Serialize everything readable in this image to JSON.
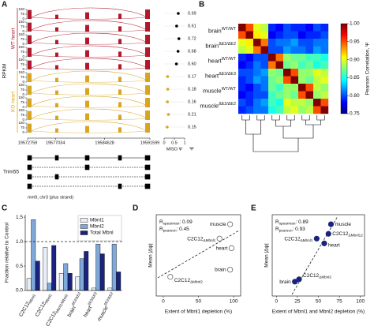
{
  "panel_labels": [
    "A",
    "B",
    "C",
    "D",
    "E"
  ],
  "panel_a": {
    "y_label": "RPKM",
    "groups": [
      {
        "name": "WT heart",
        "color": "#b2182b",
        "psi": [
          0.69,
          0.61,
          0.72,
          0.68,
          0.6
        ],
        "psi_labels": [
          "0.69",
          "0.61",
          "0.72",
          "0.68",
          "0.60"
        ]
      },
      {
        "name": "KO heart",
        "color": "#d9a520",
        "psi": [
          0.17,
          0.18,
          0.16,
          0.21,
          0.15
        ],
        "psi_labels": [
          "0.17",
          "0.18",
          "0.16",
          "0.21",
          "0.15"
        ]
      }
    ],
    "track_yticks": [
      0,
      75,
      150
    ],
    "xlim": [
      19572759,
      19591599
    ],
    "xticks": [
      19572759,
      19577034,
      19584628,
      19591599
    ],
    "psi_label": "MISO Ψ",
    "psi_header": "Ψ",
    "psi_xlim": [
      0,
      1
    ],
    "psi_xticks": [
      0,
      0.5,
      1
    ],
    "gene": "Trim55",
    "assembly": "mm9, chr3 (plus strand)"
  },
  "panel_b": {
    "colorbar_label": "Pearson Correlation, Ψ",
    "colormap": "jet",
    "samples": [
      {
        "name": "brain",
        "sup": "WT/WT"
      },
      {
        "name": "brain",
        "sup": "ΔE2/ΔE2"
      },
      {
        "name": "heart",
        "sup": "WT/WT"
      },
      {
        "name": "heart",
        "sup": "ΔE3/ΔE3"
      },
      {
        "name": "muscle",
        "sup": "WT/WT"
      },
      {
        "name": "muscle",
        "sup": "ΔE2/ΔE2"
      }
    ],
    "matrix": [
      [
        1.0,
        0.95,
        0.9,
        0.89,
        0.79,
        0.78,
        0.8,
        0.79,
        0.79,
        0.78,
        0.8,
        0.79
      ],
      [
        0.95,
        1.0,
        0.91,
        0.9,
        0.78,
        0.79,
        0.8,
        0.8,
        0.78,
        0.79,
        0.79,
        0.8
      ],
      [
        0.9,
        0.91,
        1.0,
        0.94,
        0.8,
        0.81,
        0.81,
        0.82,
        0.8,
        0.8,
        0.81,
        0.81
      ],
      [
        0.89,
        0.9,
        0.94,
        1.0,
        0.8,
        0.8,
        0.82,
        0.81,
        0.81,
        0.8,
        0.82,
        0.81
      ],
      [
        0.79,
        0.78,
        0.8,
        0.8,
        1.0,
        0.94,
        0.88,
        0.87,
        0.87,
        0.86,
        0.86,
        0.85
      ],
      [
        0.78,
        0.79,
        0.81,
        0.8,
        0.94,
        1.0,
        0.87,
        0.88,
        0.86,
        0.87,
        0.85,
        0.86
      ],
      [
        0.8,
        0.8,
        0.81,
        0.82,
        0.88,
        0.87,
        1.0,
        0.95,
        0.88,
        0.88,
        0.9,
        0.89
      ],
      [
        0.79,
        0.8,
        0.82,
        0.81,
        0.87,
        0.88,
        0.95,
        1.0,
        0.88,
        0.87,
        0.89,
        0.9
      ],
      [
        0.79,
        0.78,
        0.8,
        0.81,
        0.87,
        0.86,
        0.88,
        0.88,
        1.0,
        0.95,
        0.89,
        0.88
      ],
      [
        0.78,
        0.79,
        0.8,
        0.8,
        0.86,
        0.87,
        0.88,
        0.87,
        0.95,
        1.0,
        0.88,
        0.89
      ],
      [
        0.8,
        0.79,
        0.81,
        0.82,
        0.86,
        0.85,
        0.9,
        0.89,
        0.89,
        0.88,
        1.0,
        0.95
      ],
      [
        0.79,
        0.8,
        0.81,
        0.81,
        0.85,
        0.86,
        0.89,
        0.9,
        0.88,
        0.89,
        0.95,
        1.0
      ]
    ],
    "clim": [
      0.75,
      1.0
    ],
    "cticks": [
      0.75,
      {
        "value": 0.8,
        "label": "0.80"
      },
      0.85,
      {
        "value": 0.9,
        "label": "0.90"
      },
      0.95,
      {
        "value": 1.0,
        "label": "1.00"
      }
    ]
  },
  "chart_data": [
    {
      "type": "bar",
      "y_label": "Fraction relative to Control",
      "categories": [
        {
          "name": "C2C12",
          "sub": "Mbnl1"
        },
        {
          "name": "C2C12",
          "sub": "Mbnl2"
        },
        {
          "name": "C2C12",
          "sub": "Mbnl1/Mbnl2"
        },
        {
          "name": "brain",
          "sup": "ΔE2/ΔE2"
        },
        {
          "name": "heart",
          "sup": "ΔE3/ΔE3"
        },
        {
          "name": "muscle",
          "sup": "ΔE2/ΔE2"
        }
      ],
      "series": [
        {
          "name": "Mbnl1",
          "color": "#e8eef8",
          "values": [
            0.25,
            0.88,
            0.35,
            0.28,
            0.05,
            0.05
          ]
        },
        {
          "name": "Mbnl2",
          "color": "#7ea9da",
          "values": [
            1.45,
            0.15,
            0.55,
            0.65,
            0.95,
            0.95
          ]
        },
        {
          "name": "Total Mbnl",
          "color": "#1a237e",
          "values": [
            0.6,
            0.92,
            0.35,
            0.8,
            0.75,
            0.38
          ]
        }
      ],
      "ylim": [
        0,
        1.55
      ],
      "yticks": [
        {
          "value": 0,
          "label": "0.0"
        },
        0.5,
        {
          "value": 1,
          "label": "1.0"
        },
        1.5
      ],
      "reference_line": 1,
      "legend": "upper right"
    },
    {
      "type": "scatter",
      "x_label": "Extent of Mbnl1 depletion (%)",
      "y_label": "Mean |Δψ|",
      "annotations": [
        {
          "symbol": "R",
          "sub": "spearman",
          "text": ": 0.09"
        },
        {
          "symbol": "R",
          "sub": "pearson",
          "text": ": 0.45"
        }
      ],
      "series": [
        {
          "color": "#666666",
          "filled": false,
          "labels": [
            {
              "name": "C2C12",
              "sub": "ΔMbnl2"
            },
            {
              "name": "C2C12",
              "sub": "ΔMbnl1"
            },
            {
              "name": "heart"
            },
            {
              "name": "brain"
            },
            {
              "name": "muscle"
            }
          ],
          "x": [
            10,
            80,
            97,
            95,
            95
          ],
          "values": [
            0.04,
            0.12,
            0.1,
            0.055,
            0.15
          ]
        }
      ],
      "xlim": [
        -10,
        110
      ],
      "xticks": [
        0,
        50,
        100
      ],
      "ylim": [
        0,
        0.17
      ]
    },
    {
      "type": "scatter",
      "x_label": "Extent of Mbnl1 and Mbnl2 depletion (%)",
      "y_label": "Mean |Δψ|",
      "annotations": [
        {
          "symbol": "R",
          "sub": "spearman",
          "text": ": 0.89"
        },
        {
          "symbol": "R",
          "sub": "pearson",
          "text": ": 0.93"
        }
      ],
      "series": [
        {
          "color": "#1a237e",
          "filled": true,
          "labels": [
            {
              "name": "brain"
            },
            {
              "name": "C2C12",
              "sub": "ΔMbnl2"
            },
            {
              "name": "C2C12",
              "sub": "ΔMbnl1"
            },
            {
              "name": "heart"
            },
            {
              "name": "C2C12",
              "sub": "ΔMbnl12"
            },
            {
              "name": "muscle"
            }
          ],
          "x": [
            22,
            27,
            48,
            57,
            62,
            65
          ],
          "values": [
            0.03,
            0.035,
            0.12,
            0.11,
            0.13,
            0.15
          ]
        }
      ],
      "xlim": [
        -5,
        105
      ],
      "xticks": [
        0,
        25,
        50,
        75,
        100
      ],
      "ylim": [
        0,
        0.17
      ]
    }
  ]
}
